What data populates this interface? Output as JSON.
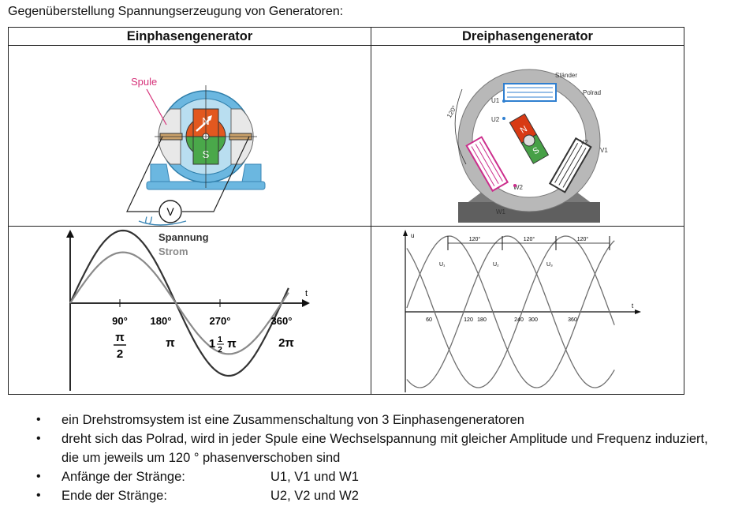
{
  "intro": "Gegenüberstellung Spannungserzeugung von Generatoren:",
  "headers": {
    "single": "Einphasengenerator",
    "three": "Dreiphasengenerator"
  },
  "single_gen": {
    "coil_label": "Spule",
    "north": "N",
    "south": "S",
    "meter": "V",
    "voltage_symbol": "U"
  },
  "three_gen": {
    "stator": "Ständer",
    "rotor": "Polrad",
    "angle": "120°",
    "north": "N",
    "south": "S",
    "coils": [
      "U1",
      "U2",
      "V1",
      "V2",
      "W1",
      "W2"
    ]
  },
  "single_chart": {
    "legend_voltage": "Spannung",
    "legend_current": "Strom",
    "t_label": "t",
    "deg_ticks": [
      "90°",
      "180°",
      "270°",
      "360°"
    ],
    "rad_ticks": [
      "π",
      "π",
      "1",
      "π",
      "2π"
    ],
    "rad_half_num": "1",
    "rad_half_den": "2",
    "pi_over_two_num": "π",
    "pi_over_two_den": "2"
  },
  "three_chart": {
    "u_axis": "u",
    "t_label": "t",
    "interval_labels": [
      "120°",
      "120°",
      "120°"
    ],
    "curve_labels": [
      "U₁",
      "U₂",
      "U₃"
    ],
    "x_ticks": [
      "60",
      "120",
      "180",
      "240",
      "300",
      "360"
    ]
  },
  "chart_data": [
    {
      "type": "line",
      "x": [
        0,
        90,
        180,
        270,
        360
      ],
      "xlabel": "t",
      "series": [
        {
          "name": "Spannung",
          "values": [
            0,
            1.0,
            0,
            -1.0,
            0
          ]
        },
        {
          "name": "Strom",
          "values": [
            0,
            0.7,
            0,
            -0.7,
            0
          ]
        }
      ]
    },
    {
      "type": "line",
      "x": [
        0,
        60,
        120,
        180,
        240,
        300,
        360
      ],
      "xlabel": "t",
      "ylabel": "u",
      "series": [
        {
          "name": "U₁",
          "values": [
            0,
            0.87,
            0.87,
            0,
            -0.87,
            -0.87,
            0
          ]
        },
        {
          "name": "U₂",
          "values": [
            -0.87,
            0,
            0.87,
            0.87,
            0,
            -0.87,
            -0.87
          ]
        },
        {
          "name": "U₃",
          "values": [
            0.87,
            -0.87,
            0,
            0.87,
            0.87,
            0,
            -0.87
          ]
        }
      ]
    }
  ],
  "bullets": [
    {
      "text": "ein Drehstromsystem ist eine Zusammenschaltung von 3 Einphasengeneratoren"
    },
    {
      "text": "dreht sich das Polrad, wird in jeder Spule eine Wechselspannung mit gleicher Amplitude und Frequenz induziert, die um jeweils um 120 ° phasenverschoben sind"
    },
    {
      "label": "Anfänge der Stränge:",
      "value": "U1, V1 und W1"
    },
    {
      "label": "Ende der Stränge:",
      "value": "U2, V2 und W2"
    }
  ]
}
